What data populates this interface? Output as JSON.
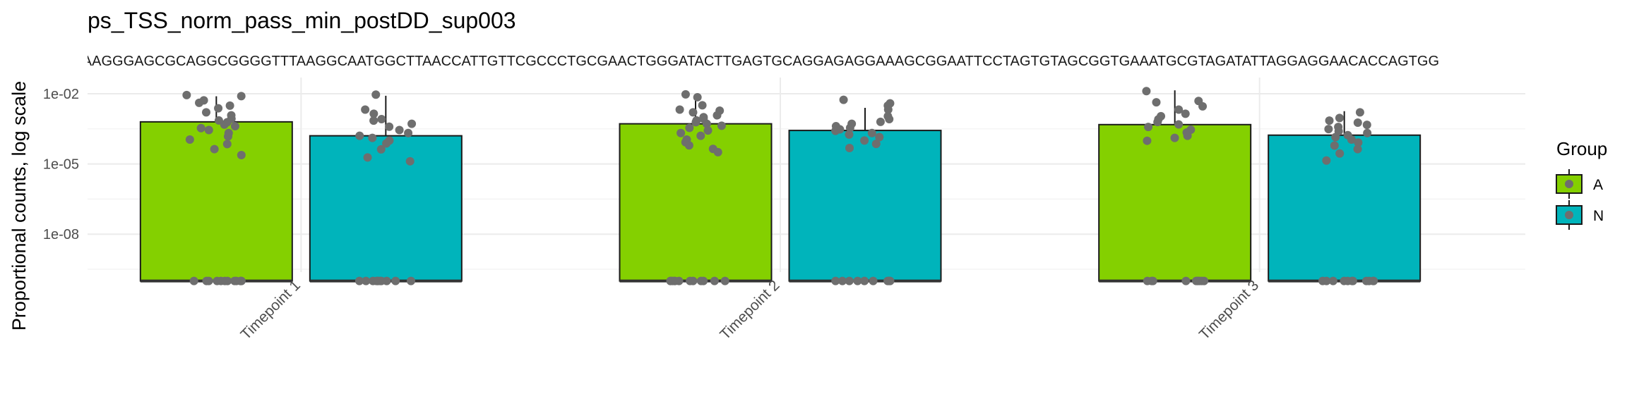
{
  "chart_data": {
    "type": "bar",
    "title": "ps_TSS_norm_pass_min_postDD_sup003",
    "subtitle": "TACGTAGGGGGCAAGCGTTATCCGGATTTACTGGGTGTAAAGGGAGCGCAGGCGGGGTTTAAGGCAATGGCTTAACCATTGTTCGCCCTGCGAACTGGGATACTTGAGTGCAGGAGAGGAAAGCGGAATTCCTAGTGTAGCGGTGAAATGCGTAGATATTAGGAGGAACACCAGTGG",
    "xlabel": "",
    "ylabel": "Proportional counts, log scale",
    "y_scale": "log10",
    "ylim": [
      1e-10,
      0.05
    ],
    "yticks": [
      "1e-02",
      "1e-05",
      "1e-08"
    ],
    "categories": [
      "Timepoint 1",
      "Timepoint 2",
      "Timepoint 3"
    ],
    "series": [
      {
        "name": "A",
        "color": "#84d000",
        "values": [
          0.00063,
          0.00052,
          0.00048
        ]
      },
      {
        "name": "N",
        "color": "#00b4bb",
        "values": [
          0.00016,
          0.00027,
          0.00017
        ]
      }
    ],
    "error_upper": [
      [
        0.0078,
        0.0052,
        0.014
      ],
      [
        0.0082,
        0.0025,
        0.0018
      ]
    ],
    "zero_floor": 1e-10,
    "points": [
      {
        "A": [
          0.0088,
          0.0079,
          0.0052,
          0.0041,
          0.0031,
          0.0024,
          0.0016,
          0.0012,
          0.00085,
          0.00072,
          0.00061,
          0.00048,
          0.00041,
          0.00034,
          0.00028,
          0.00021,
          0.00015,
          0.00011,
          7.1e-05,
          4.3e-05,
          2.4e-05
        ],
        "N": [
          0.0092,
          0.0021,
          0.0014,
          0.00082,
          0.00071,
          0.00052,
          0.00039,
          0.00028,
          0.00021,
          0.00016,
          0.00013,
          0.0001,
          7.5e-05,
          4.2e-05,
          1.9e-05,
          1.3e-05
        ]
      },
      {
        "A": [
          0.0094,
          0.0071,
          0.0032,
          0.0021,
          0.0019,
          0.0016,
          0.0012,
          0.001,
          0.00085,
          0.00072,
          0.00061,
          0.00052,
          0.00043,
          0.00035,
          0.00027,
          0.00021,
          0.00016,
          0.00011,
          8.5e-05,
          6.2e-05,
          4.4e-05,
          3.2e-05
        ],
        "N": [
          0.0055,
          0.0039,
          0.0031,
          0.0021,
          0.0011,
          0.00082,
          0.00063,
          0.00052,
          0.00041,
          0.00035,
          0.0003,
          0.00026,
          0.00021,
          0.00018,
          0.00014,
          0.0001,
          7.2e-05,
          4.8e-05
        ]
      },
      {
        "A": [
          0.013,
          0.0049,
          0.0043,
          0.0029,
          0.0021,
          0.0014,
          0.0011,
          0.00081,
          0.00062,
          0.00049,
          0.00038,
          0.00029,
          0.00022,
          0.00016,
          0.00013,
          9.8e-05
        ],
        "N": [
          0.0016,
          0.00092,
          0.00071,
          0.00058,
          0.00047,
          0.00038,
          0.00031,
          0.00025,
          0.00021,
          0.00017,
          0.00014,
          0.00011,
          8.2e-05,
          6.1e-05,
          4.3e-05,
          2.8e-05,
          1.4e-05
        ]
      }
    ],
    "zero_point_counts": [
      {
        "A": 12,
        "N": 11
      },
      {
        "A": 12,
        "N": 10
      },
      {
        "A": 10,
        "N": 11
      }
    ],
    "point_color": "#6e6e6e",
    "grid": true,
    "legend": {
      "title": "Group",
      "position": "right",
      "entries": [
        "A",
        "N"
      ]
    }
  }
}
